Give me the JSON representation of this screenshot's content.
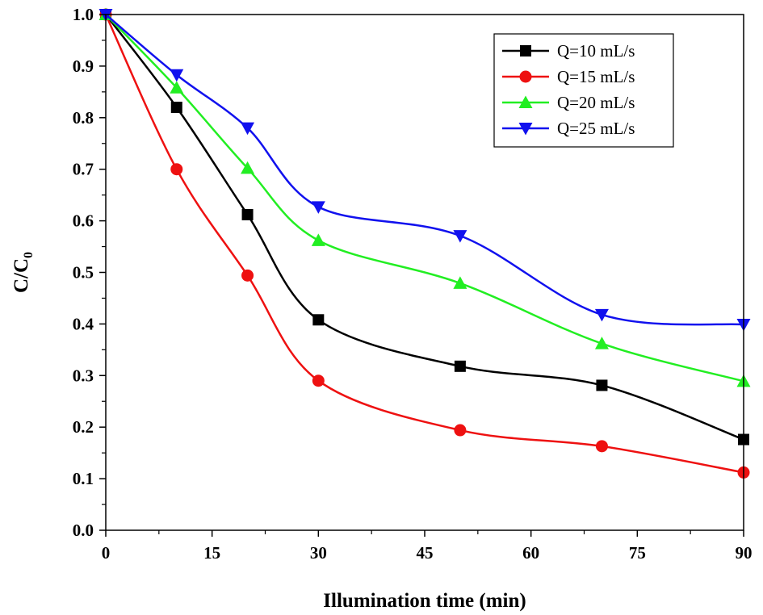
{
  "chart_data": {
    "type": "line",
    "xlabel": "Illumination time (min)",
    "ylabel_main": "C/C",
    "ylabel_sub": "0",
    "xlim": [
      0,
      90
    ],
    "ylim": [
      0,
      1.0
    ],
    "xticks": [
      0,
      15,
      30,
      45,
      60,
      75,
      90
    ],
    "yticks": [
      0.0,
      0.1,
      0.2,
      0.3,
      0.4,
      0.5,
      0.6,
      0.7,
      0.8,
      0.9,
      1.0
    ],
    "x": [
      0,
      10,
      20,
      30,
      50,
      70,
      90
    ],
    "legend_position": "top-right",
    "series": [
      {
        "name": "Q=10 mL/s",
        "color": "#000000",
        "marker": "square",
        "values": [
          1.0,
          0.82,
          0.612,
          0.408,
          0.318,
          0.281,
          0.176
        ]
      },
      {
        "name": "Q=15 mL/s",
        "color": "#ee1111",
        "marker": "circle",
        "values": [
          1.0,
          0.7,
          0.494,
          0.29,
          0.194,
          0.163,
          0.112
        ]
      },
      {
        "name": "Q=20 mL/s",
        "color": "#22ee22",
        "marker": "triangle-up",
        "values": [
          1.0,
          0.858,
          0.702,
          0.562,
          0.479,
          0.362,
          0.289
        ]
      },
      {
        "name": "Q=25 mL/s",
        "color": "#1111ee",
        "marker": "triangle-down",
        "values": [
          1.0,
          0.883,
          0.78,
          0.627,
          0.571,
          0.418,
          0.399
        ]
      }
    ]
  }
}
